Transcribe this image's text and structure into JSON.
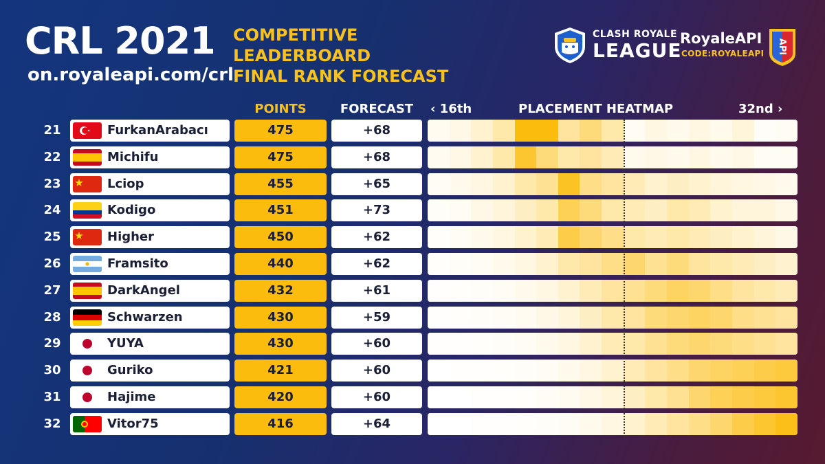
{
  "header": {
    "title": "CRL 2021",
    "url": "on.royaleapi.com/crl",
    "subtitle_lines": [
      "COMPETITIVE",
      "LEADERBOARD",
      "FINAL RANK FORECAST"
    ]
  },
  "logos": {
    "crl_line1": "CLASH ROYALE",
    "crl_line2": "LEAGUE",
    "royaleapi_name": "RoyaleAPI",
    "royaleapi_code": "CODE:ROYALEAPI",
    "royaleapi_badge": "API"
  },
  "columns": {
    "points": "POINTS",
    "forecast": "FORECAST",
    "heat_left": "‹ 16th",
    "heatmap": "PLACEMENT HEATMAP",
    "heat_right": "32nd ›"
  },
  "colors": {
    "gold": "#fcbc0d",
    "title_yellow": "#f7c21f",
    "bg_blue": "#14357e",
    "bg_maroon": "#571a30"
  },
  "rows": [
    {
      "rank": "21",
      "name": "FurkanArabacı",
      "flag": "turkey",
      "points": "475",
      "forecast": "+68",
      "heat": [
        0.06,
        0.1,
        0.2,
        0.35,
        1,
        1,
        0.4,
        0.55,
        0.35,
        0.05,
        0.12,
        0.08,
        0.12,
        0.08,
        0.15,
        0.03,
        0.05
      ]
    },
    {
      "rank": "22",
      "name": "Michifu",
      "flag": "spain",
      "points": "475",
      "forecast": "+68",
      "heat": [
        0.06,
        0.1,
        0.2,
        0.35,
        0.85,
        0.55,
        0.35,
        0.4,
        0.3,
        0.08,
        0.1,
        0.08,
        0.12,
        0.08,
        0.1,
        0.05,
        0.05
      ]
    },
    {
      "rank": "23",
      "name": "Lciop",
      "flag": "china",
      "points": "455",
      "forecast": "+65",
      "heat": [
        0.04,
        0.08,
        0.12,
        0.2,
        0.35,
        0.45,
        0.9,
        0.5,
        0.4,
        0.3,
        0.2,
        0.25,
        0.2,
        0.15,
        0.12,
        0.1,
        0.08
      ]
    },
    {
      "rank": "24",
      "name": "Kodigo",
      "flag": "colombia",
      "points": "451",
      "forecast": "+73",
      "heat": [
        0.03,
        0.05,
        0.1,
        0.15,
        0.25,
        0.35,
        0.7,
        0.55,
        0.35,
        0.3,
        0.25,
        0.35,
        0.3,
        0.2,
        0.15,
        0.15,
        0.1
      ]
    },
    {
      "rank": "25",
      "name": "Higher",
      "flag": "china",
      "points": "450",
      "forecast": "+62",
      "heat": [
        0.02,
        0.04,
        0.08,
        0.12,
        0.2,
        0.3,
        0.75,
        0.6,
        0.5,
        0.35,
        0.3,
        0.35,
        0.3,
        0.25,
        0.2,
        0.15,
        0.1
      ]
    },
    {
      "rank": "26",
      "name": "Framsito",
      "flag": "argentina",
      "points": "440",
      "forecast": "+62",
      "heat": [
        0.02,
        0.03,
        0.05,
        0.08,
        0.12,
        0.2,
        0.35,
        0.4,
        0.5,
        0.6,
        0.45,
        0.55,
        0.4,
        0.35,
        0.3,
        0.25,
        0.2
      ]
    },
    {
      "rank": "27",
      "name": "DarkAngel",
      "flag": "spain",
      "points": "432",
      "forecast": "+61",
      "heat": [
        0.01,
        0.02,
        0.03,
        0.05,
        0.08,
        0.12,
        0.2,
        0.3,
        0.4,
        0.45,
        0.55,
        0.65,
        0.6,
        0.5,
        0.4,
        0.35,
        0.3
      ]
    },
    {
      "rank": "28",
      "name": "Schwarzen",
      "flag": "germany",
      "points": "430",
      "forecast": "+59",
      "heat": [
        0.01,
        0.02,
        0.03,
        0.04,
        0.06,
        0.1,
        0.15,
        0.25,
        0.35,
        0.4,
        0.55,
        0.6,
        0.65,
        0.6,
        0.5,
        0.45,
        0.4
      ]
    },
    {
      "rank": "29",
      "name": "YUYA",
      "flag": "japan",
      "points": "430",
      "forecast": "+60",
      "heat": [
        0.01,
        0.01,
        0.02,
        0.03,
        0.05,
        0.08,
        0.12,
        0.2,
        0.3,
        0.35,
        0.45,
        0.55,
        0.6,
        0.55,
        0.5,
        0.45,
        0.4
      ]
    },
    {
      "rank": "30",
      "name": "Guriko",
      "flag": "japan",
      "points": "421",
      "forecast": "+60",
      "heat": [
        0,
        0.01,
        0.01,
        0.02,
        0.03,
        0.05,
        0.08,
        0.12,
        0.2,
        0.3,
        0.4,
        0.5,
        0.6,
        0.65,
        0.7,
        0.75,
        0.8
      ]
    },
    {
      "rank": "31",
      "name": "Hajime",
      "flag": "japan",
      "points": "420",
      "forecast": "+60",
      "heat": [
        0,
        0,
        0.01,
        0.01,
        0.02,
        0.04,
        0.06,
        0.1,
        0.15,
        0.25,
        0.35,
        0.45,
        0.6,
        0.7,
        0.75,
        0.8,
        0.85
      ]
    },
    {
      "rank": "32",
      "name": "Vitor75",
      "flag": "portugal",
      "points": "416",
      "forecast": "+64",
      "heat": [
        0,
        0,
        0.01,
        0.01,
        0.02,
        0.03,
        0.05,
        0.08,
        0.12,
        0.2,
        0.3,
        0.4,
        0.5,
        0.6,
        0.75,
        0.85,
        0.95
      ]
    }
  ]
}
